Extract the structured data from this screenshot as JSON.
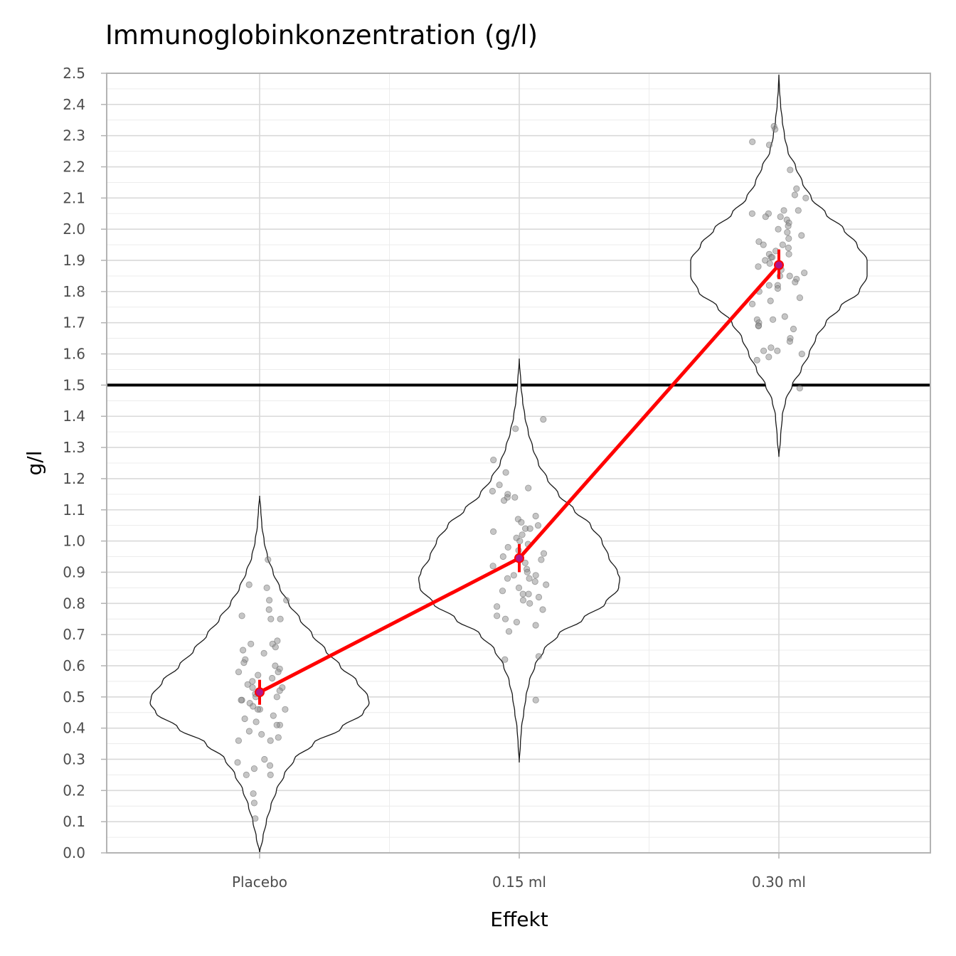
{
  "chart_data": {
    "type": "violin",
    "title": "Immunoglobinkonzentration (g/l)",
    "xlabel": "Effekt",
    "ylabel": "g/l",
    "ylim": [
      0,
      2.5
    ],
    "y_ticks": [
      "0.0",
      "0.1",
      "0.2",
      "0.3",
      "0.4",
      "0.5",
      "0.6",
      "0.7",
      "0.8",
      "0.9",
      "1.0",
      "1.1",
      "1.2",
      "1.3",
      "1.4",
      "1.5",
      "1.6",
      "1.7",
      "1.8",
      "1.9",
      "2.0",
      "2.1",
      "2.2",
      "2.3",
      "2.4",
      "2.5"
    ],
    "categories": [
      "Placebo",
      "0.15 ml",
      "0.30 ml"
    ],
    "reference_line": 1.5,
    "grid": true,
    "colors": {
      "mean_line": "#ff0000",
      "reference": "#000000",
      "points": "#8c8c8c",
      "violin": "#1a1a1a"
    },
    "groups": [
      {
        "name": "Placebo",
        "mean": 0.515,
        "ci": [
          0.475,
          0.555
        ],
        "violin_range": [
          0.0,
          1.145
        ],
        "density": [
          [
            0.0,
            0.0
          ],
          [
            0.05,
            0.03
          ],
          [
            0.1,
            0.06
          ],
          [
            0.15,
            0.1
          ],
          [
            0.2,
            0.15
          ],
          [
            0.25,
            0.22
          ],
          [
            0.3,
            0.31
          ],
          [
            0.35,
            0.48
          ],
          [
            0.4,
            0.73
          ],
          [
            0.45,
            0.93
          ],
          [
            0.48,
            0.98
          ],
          [
            0.5,
            0.97
          ],
          [
            0.55,
            0.87
          ],
          [
            0.6,
            0.72
          ],
          [
            0.65,
            0.59
          ],
          [
            0.7,
            0.47
          ],
          [
            0.75,
            0.36
          ],
          [
            0.8,
            0.26
          ],
          [
            0.85,
            0.18
          ],
          [
            0.9,
            0.12
          ],
          [
            0.95,
            0.07
          ],
          [
            1.0,
            0.04
          ],
          [
            1.05,
            0.02
          ],
          [
            1.1,
            0.01
          ],
          [
            1.145,
            0.0
          ]
        ],
        "points": [
          0.94,
          0.86,
          0.85,
          0.81,
          0.81,
          0.78,
          0.76,
          0.75,
          0.75,
          0.68,
          0.67,
          0.67,
          0.66,
          0.65,
          0.64,
          0.62,
          0.61,
          0.6,
          0.59,
          0.58,
          0.58,
          0.57,
          0.56,
          0.55,
          0.54,
          0.53,
          0.53,
          0.52,
          0.51,
          0.5,
          0.5,
          0.49,
          0.49,
          0.48,
          0.47,
          0.46,
          0.46,
          0.46,
          0.44,
          0.43,
          0.42,
          0.41,
          0.41,
          0.39,
          0.38,
          0.37,
          0.36,
          0.36,
          0.3,
          0.29,
          0.28,
          0.27,
          0.25,
          0.25,
          0.19,
          0.16,
          0.11
        ]
      },
      {
        "name": "0.15 ml",
        "mean": 0.945,
        "ci": [
          0.9,
          0.99
        ],
        "violin_range": [
          0.29,
          1.585
        ],
        "density": [
          [
            0.29,
            0.0
          ],
          [
            0.35,
            0.01
          ],
          [
            0.4,
            0.02
          ],
          [
            0.45,
            0.04
          ],
          [
            0.5,
            0.06
          ],
          [
            0.55,
            0.09
          ],
          [
            0.6,
            0.14
          ],
          [
            0.65,
            0.22
          ],
          [
            0.7,
            0.35
          ],
          [
            0.75,
            0.57
          ],
          [
            0.8,
            0.77
          ],
          [
            0.85,
            0.89
          ],
          [
            0.88,
            0.9
          ],
          [
            0.9,
            0.88
          ],
          [
            0.95,
            0.8
          ],
          [
            1.0,
            0.74
          ],
          [
            1.05,
            0.64
          ],
          [
            1.1,
            0.49
          ],
          [
            1.15,
            0.35
          ],
          [
            1.2,
            0.25
          ],
          [
            1.25,
            0.17
          ],
          [
            1.3,
            0.12
          ],
          [
            1.35,
            0.08
          ],
          [
            1.4,
            0.05
          ],
          [
            1.45,
            0.03
          ],
          [
            1.5,
            0.015
          ],
          [
            1.585,
            0.0
          ]
        ],
        "points": [
          1.39,
          1.36,
          1.26,
          1.22,
          1.18,
          1.17,
          1.16,
          1.15,
          1.14,
          1.14,
          1.13,
          1.08,
          1.07,
          1.06,
          1.05,
          1.04,
          1.04,
          1.03,
          1.02,
          1.01,
          1.0,
          0.99,
          0.98,
          0.97,
          0.96,
          0.95,
          0.95,
          0.94,
          0.93,
          0.92,
          0.91,
          0.9,
          0.89,
          0.89,
          0.88,
          0.88,
          0.87,
          0.86,
          0.85,
          0.84,
          0.83,
          0.83,
          0.82,
          0.81,
          0.8,
          0.79,
          0.78,
          0.76,
          0.75,
          0.74,
          0.73,
          0.71,
          0.63,
          0.62,
          0.49
        ]
      },
      {
        "name": "0.30 ml",
        "mean": 1.885,
        "ci": [
          1.84,
          1.935
        ],
        "violin_range": [
          1.27,
          2.495
        ],
        "density": [
          [
            1.27,
            0.0
          ],
          [
            1.33,
            0.015
          ],
          [
            1.4,
            0.03
          ],
          [
            1.45,
            0.06
          ],
          [
            1.5,
            0.12
          ],
          [
            1.55,
            0.2
          ],
          [
            1.6,
            0.27
          ],
          [
            1.65,
            0.33
          ],
          [
            1.7,
            0.42
          ],
          [
            1.75,
            0.55
          ],
          [
            1.8,
            0.72
          ],
          [
            1.85,
            0.79
          ],
          [
            1.9,
            0.79
          ],
          [
            1.95,
            0.7
          ],
          [
            2.0,
            0.58
          ],
          [
            2.05,
            0.42
          ],
          [
            2.1,
            0.29
          ],
          [
            2.15,
            0.21
          ],
          [
            2.2,
            0.15
          ],
          [
            2.25,
            0.08
          ],
          [
            2.3,
            0.05
          ],
          [
            2.35,
            0.03
          ],
          [
            2.4,
            0.015
          ],
          [
            2.45,
            0.005
          ],
          [
            2.495,
            0.0
          ]
        ],
        "points": [
          2.33,
          2.32,
          2.28,
          2.27,
          2.19,
          2.13,
          2.11,
          2.1,
          2.06,
          2.06,
          2.05,
          2.05,
          2.04,
          2.04,
          2.03,
          2.02,
          2.01,
          2.0,
          1.99,
          1.98,
          1.97,
          1.96,
          1.95,
          1.95,
          1.94,
          1.93,
          1.92,
          1.92,
          1.91,
          1.91,
          1.9,
          1.89,
          1.88,
          1.87,
          1.86,
          1.85,
          1.85,
          1.84,
          1.83,
          1.82,
          1.82,
          1.81,
          1.8,
          1.78,
          1.77,
          1.76,
          1.72,
          1.71,
          1.71,
          1.7,
          1.69,
          1.69,
          1.68,
          1.65,
          1.64,
          1.62,
          1.61,
          1.61,
          1.6,
          1.59,
          1.58,
          1.49
        ]
      }
    ]
  }
}
